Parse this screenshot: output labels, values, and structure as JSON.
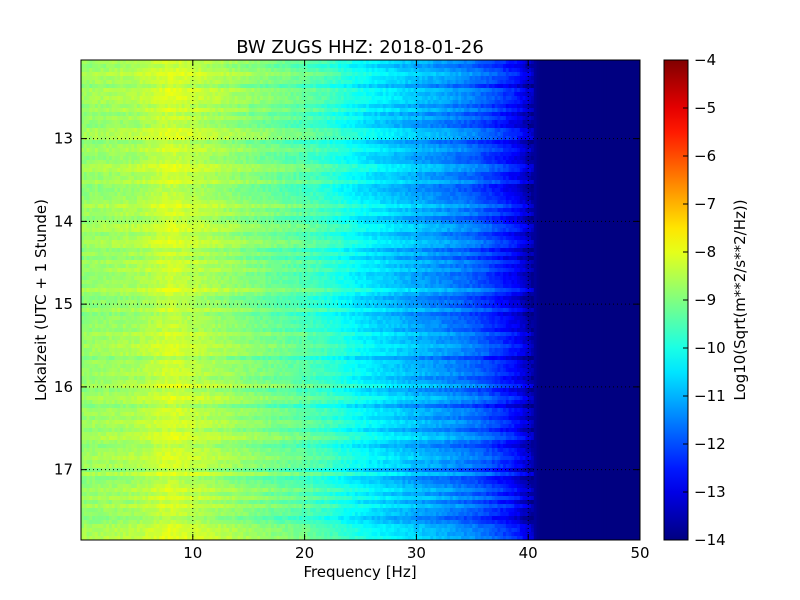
{
  "chart_data": {
    "type": "heatmap",
    "title": "BW ZUGS HHZ: 2018-01-26",
    "xlabel": "Frequency [Hz]",
    "ylabel": "Lokalzeit (UTC + 1 Stunde)",
    "xlim": [
      0,
      50
    ],
    "ylim": [
      12.05,
      17.85
    ],
    "y_inverted": true,
    "grid": true,
    "x_ticks": [
      10,
      20,
      30,
      40,
      50
    ],
    "x_tick_labels": [
      "10",
      "20",
      "30",
      "40",
      "50"
    ],
    "y_ticks": [
      13,
      14,
      15,
      16,
      17
    ],
    "y_tick_labels": [
      "13",
      "14",
      "15",
      "16",
      "17"
    ],
    "colorbar": {
      "label": "Log10(Sqrt(m**2/s**2/Hz))",
      "range": [
        -14,
        -4
      ],
      "ticks": [
        -4,
        -5,
        -6,
        -7,
        -8,
        -9,
        -10,
        -11,
        -12,
        -13,
        -14
      ],
      "tick_labels": [
        "−4",
        "−5",
        "−6",
        "−7",
        "−8",
        "−9",
        "−10",
        "−11",
        "−12",
        "−13",
        "−14"
      ],
      "colormap": "jet"
    },
    "frequency_profile": {
      "frequency_hz": [
        0,
        5,
        8,
        10,
        15,
        20,
        22,
        25,
        27,
        30,
        33,
        35,
        37,
        39,
        40,
        41,
        50
      ],
      "level": [
        -8.8,
        -8.6,
        -8.2,
        -8.4,
        -8.9,
        -9.4,
        -9.7,
        -10.3,
        -10.6,
        -11.0,
        -11.4,
        -11.7,
        -12.2,
        -12.8,
        -13.4,
        -13.95,
        -14.0
      ]
    }
  }
}
